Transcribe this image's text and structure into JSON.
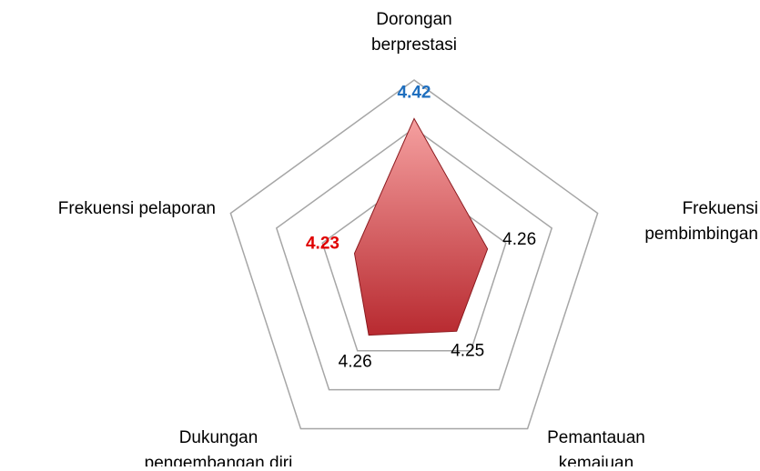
{
  "chart_data": {
    "type": "radar",
    "categories": [
      "Dorongan berprestasi",
      "Frekuensi pembimbingan",
      "Pemantauan kemajuan",
      "Dukungan pengembangan diri",
      "Frekuensi pelaporan"
    ],
    "values": [
      4.42,
      4.26,
      4.25,
      4.26,
      4.23
    ],
    "value_label_colors": [
      "#1f6fbf",
      "#000000",
      "#000000",
      "#000000",
      "#e00000"
    ],
    "color": "#d9434a",
    "ylim": [
      4.1,
      4.5
    ],
    "yticks": [
      4.1,
      4.2,
      4.3,
      4.4,
      4.5
    ],
    "grid": true
  }
}
